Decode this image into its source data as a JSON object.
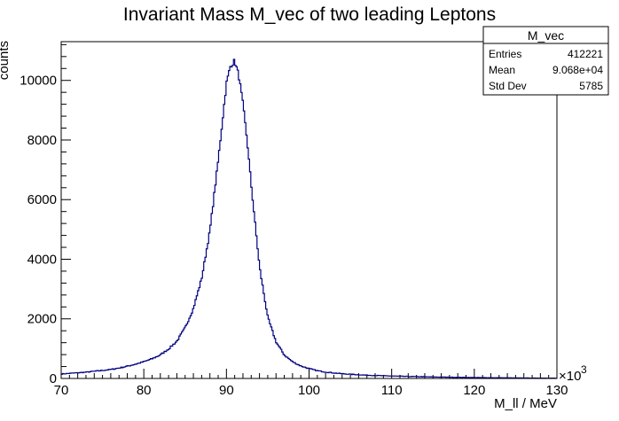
{
  "chart_data": {
    "type": "histogram",
    "title": "Invariant Mass M_vec of two leading Leptons",
    "xlabel": "M_ll / MeV",
    "ylabel": "counts",
    "x_multiplier_text": "×10",
    "x_multiplier_exponent": "3",
    "xlim": [
      70,
      130
    ],
    "ylim": [
      0,
      11300
    ],
    "x_ticks": [
      70,
      80,
      90,
      100,
      110,
      120,
      130
    ],
    "x_tick_labels": [
      "70",
      "80",
      "90",
      "100",
      "110",
      "120",
      "130"
    ],
    "y_ticks": [
      0,
      2000,
      4000,
      6000,
      8000,
      10000
    ],
    "y_tick_labels": [
      "0",
      "2000",
      "4000",
      "6000",
      "8000",
      "10000"
    ],
    "line_color": "#000080",
    "grid": false,
    "legend": "none",
    "stats_box": {
      "position": "top-right",
      "title": "M_vec",
      "rows": [
        {
          "label": "Entries",
          "value": "412221"
        },
        {
          "label": "Mean",
          "value": "9.068e+04"
        },
        {
          "label": "Std Dev",
          "value": "5785"
        }
      ]
    },
    "series": [
      {
        "x": [
          70,
          71,
          72,
          73,
          74,
          75,
          76,
          77,
          78,
          79,
          80,
          81,
          82,
          83,
          84,
          85,
          86,
          87,
          88,
          89,
          89.5,
          90,
          90.5,
          91,
          91.5,
          92,
          92.5,
          93,
          94,
          95,
          96,
          97,
          98,
          99,
          100,
          101,
          102,
          103,
          104,
          105,
          106,
          107,
          108,
          109,
          110,
          111,
          112,
          113,
          114,
          115,
          116,
          117,
          118,
          119,
          120,
          121,
          122,
          123,
          124,
          125,
          126,
          127,
          128,
          129,
          130
        ],
        "values": [
          150,
          170,
          190,
          210,
          240,
          270,
          300,
          350,
          410,
          480,
          560,
          660,
          790,
          990,
          1250,
          1700,
          2350,
          3350,
          4950,
          7300,
          8600,
          9900,
          10500,
          10650,
          10150,
          9200,
          8000,
          6500,
          3750,
          2050,
          1230,
          790,
          560,
          420,
          330,
          260,
          215,
          185,
          160,
          140,
          125,
          110,
          100,
          90,
          82,
          75,
          68,
          62,
          56,
          50,
          46,
          42,
          38,
          34,
          31,
          28,
          25,
          22,
          20,
          18,
          16,
          14,
          12,
          10,
          8
        ]
      }
    ]
  }
}
